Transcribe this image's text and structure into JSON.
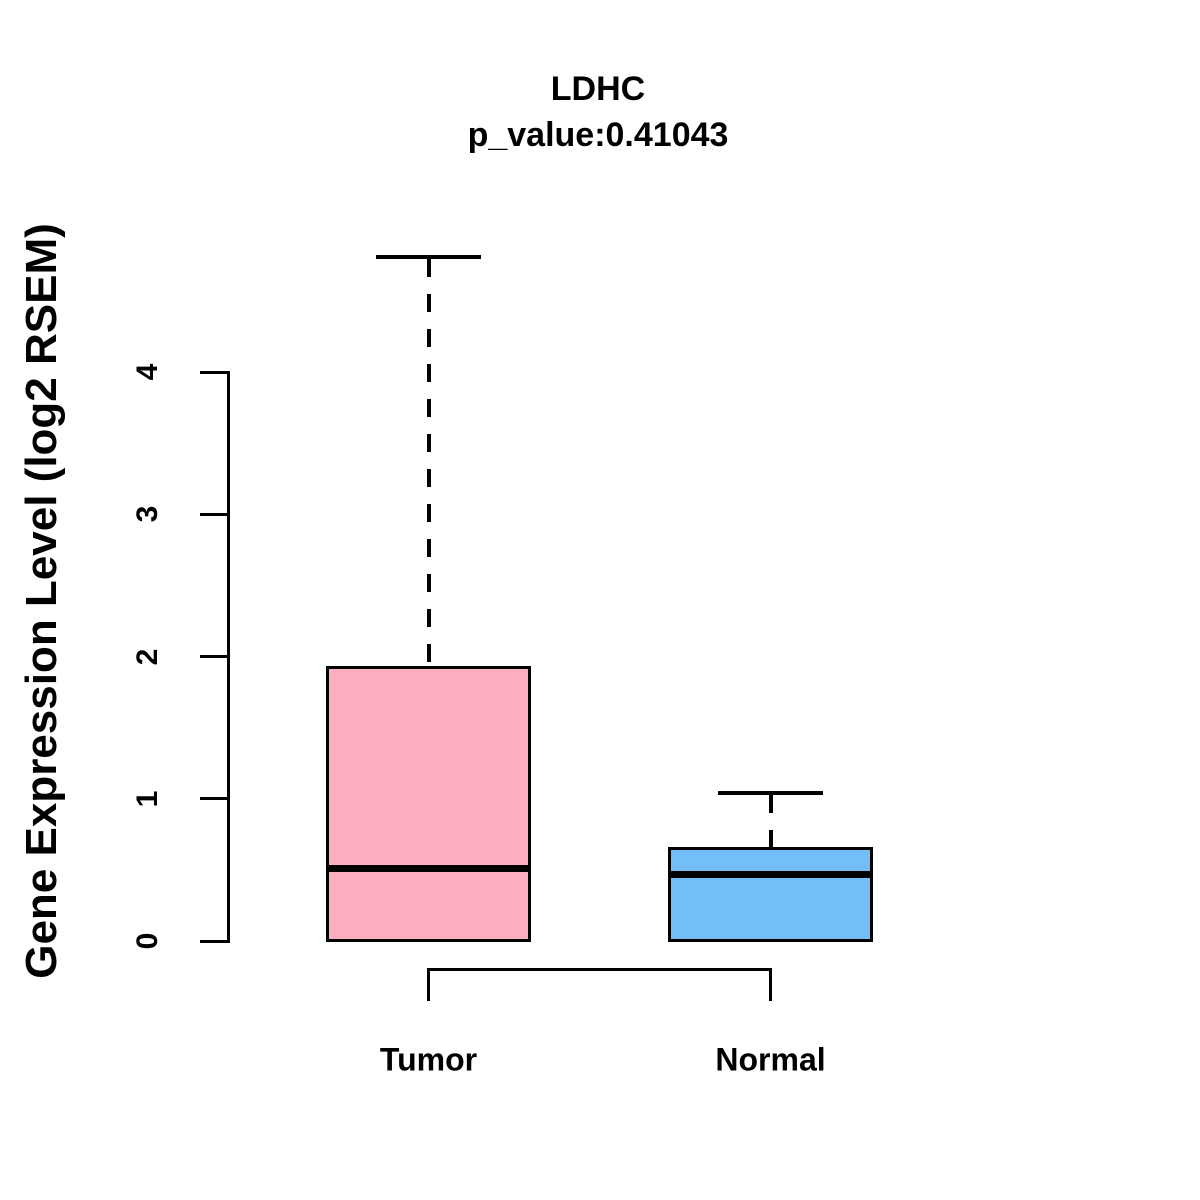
{
  "figure": {
    "background_color": "#ffffff",
    "line_color": "#000000"
  },
  "chart_data": {
    "type": "boxplot",
    "title": "LDHC",
    "subtitle": "p_value:0.41043",
    "ylabel": "Gene Expression Level (log2 RSEM)",
    "xlabel": "",
    "categories": [
      "Tumor",
      "Normal"
    ],
    "series": [
      {
        "name": "Tumor",
        "whisker_low": 0,
        "q1": 0,
        "median": 0.51,
        "q3": 1.92,
        "whisker_high": 4.81,
        "color": "#FDAEC0"
      },
      {
        "name": "Normal",
        "whisker_low": 0,
        "q1": 0,
        "median": 0.47,
        "q3": 0.65,
        "whisker_high": 1.04,
        "color": "#73BEF7"
      }
    ],
    "yticks": [
      0,
      1,
      2,
      3,
      4
    ],
    "ylim": [
      0,
      4.85
    ],
    "grid": false,
    "legend": "none",
    "whisker_style": "dashed",
    "comparison_bracket": true
  }
}
